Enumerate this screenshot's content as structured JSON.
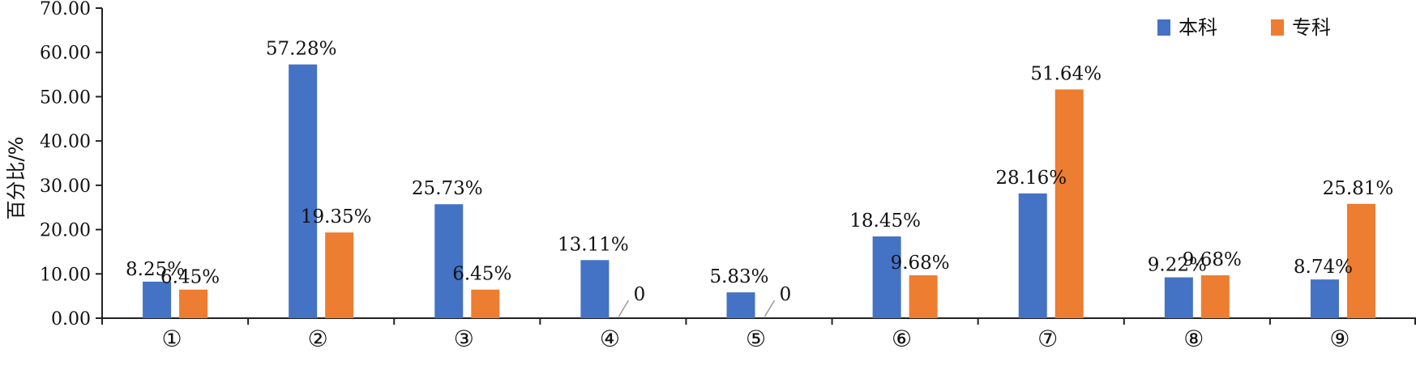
{
  "chart_data": {
    "type": "bar",
    "ylabel": "百分比/%",
    "ylim": [
      0,
      70
    ],
    "yticks": [
      "0.00",
      "10.00",
      "20.00",
      "30.00",
      "40.00",
      "50.00",
      "60.00",
      "70.00"
    ],
    "categories": [
      "①",
      "②",
      "③",
      "④",
      "⑤",
      "⑥",
      "⑦",
      "⑧",
      "⑨"
    ],
    "series": [
      {
        "name": "本科",
        "color": "#4472C4",
        "values": [
          8.25,
          57.28,
          25.73,
          13.11,
          5.83,
          18.45,
          28.16,
          9.22,
          8.74
        ],
        "labels": [
          "8.25%",
          "57.28%",
          "25.73%",
          "13.11%",
          "5.83%",
          "18.45%",
          "28.16%",
          "9.22%",
          "8.74%"
        ]
      },
      {
        "name": "专科",
        "color": "#ED7D31",
        "values": [
          6.45,
          19.35,
          6.45,
          0,
          0,
          9.68,
          51.64,
          9.68,
          25.81
        ],
        "labels": [
          "6.45%",
          "19.35%",
          "6.45%",
          "0",
          "0",
          "9.68%",
          "51.64%",
          "9.68%",
          "25.81%"
        ]
      }
    ],
    "legend_position": "top-right",
    "grid": false
  }
}
